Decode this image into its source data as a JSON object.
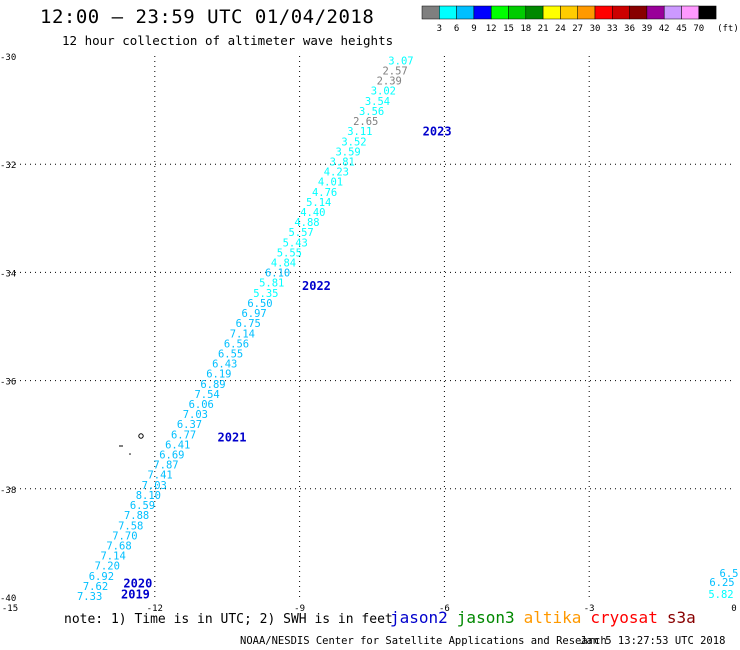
{
  "title": "12:00 – 23:59 UTC 01/04/2018",
  "subtitle": "12 hour collection of altimeter wave heights",
  "scale": {
    "labels": [
      "3",
      "6",
      "9",
      "12",
      "15",
      "18",
      "21",
      "24",
      "27",
      "30",
      "33",
      "36",
      "39",
      "42",
      "45",
      "70"
    ],
    "unit": "(ft)",
    "colors": [
      "#7f7f7f",
      "#00ffff",
      "#00bfff",
      "#0000ff",
      "#00ff00",
      "#00cc00",
      "#008800",
      "#ffff00",
      "#ffcc00",
      "#ff9900",
      "#ff0000",
      "#cc0000",
      "#880000",
      "#990099",
      "#cc99ff",
      "#ff99ff",
      "#000000"
    ]
  },
  "note": "note: 1) Time is in UTC; 2) SWH is in feet",
  "satellites": [
    {
      "name": "jason2",
      "color": "#0000cc"
    },
    {
      "name": "jason3",
      "color": "#008800"
    },
    {
      "name": "altika",
      "color": "#ff9900"
    },
    {
      "name": "cryosat",
      "color": "#ff0000"
    },
    {
      "name": "s3a",
      "color": "#880000"
    }
  ],
  "credit": "NOAA/NESDIS Center for Satellite Applications and Research",
  "generated": "Jan  5 13:27:53 UTC 2018",
  "chart_data": {
    "type": "scatter",
    "xlim": [
      -15,
      0
    ],
    "ylim": [
      -40,
      -30
    ],
    "xticks": [
      "-15",
      "-12",
      "-9",
      "-6",
      "-3",
      "0"
    ],
    "yticks": [
      "-30",
      "-32",
      "-34",
      "-36",
      "-38",
      "-40"
    ],
    "xtick_values": [
      -15,
      -12,
      -9,
      -6,
      -3,
      0
    ],
    "ytick_values": [
      -30,
      -32,
      -34,
      -36,
      -38,
      -40
    ],
    "grid": true,
    "track": {
      "lon_start": -13.35,
      "lat_start": -40.0,
      "lon_end": -6.9,
      "lat_end": -30.1,
      "values": [
        "7.33",
        "7.62",
        "6.92",
        "7.20",
        "7.14",
        "7.68",
        "7.70",
        "7.58",
        "7.88",
        "6.59",
        "8.10",
        "7.03",
        "7.41",
        "7.87",
        "6.69",
        "6.41",
        "6.77",
        "6.37",
        "7.03",
        "6.06",
        "7.54",
        "6.89",
        "6.19",
        "6.43",
        "6.55",
        "6.56",
        "7.14",
        "6.75",
        "6.97",
        "6.50",
        "5.35",
        "5.81",
        "6.10",
        "4.84",
        "5.55",
        "5.43",
        "5.57",
        "4.88",
        "4.40",
        "5.14",
        "4.76",
        "4.01",
        "4.23",
        "3.81",
        "3.59",
        "3.52",
        "3.11",
        "2.65",
        "3.56",
        "3.54",
        "3.02",
        "2.39",
        "2.57",
        "3.07"
      ]
    },
    "right_values": [
      "5.82",
      "6.25",
      "6.5"
    ],
    "time_labels": [
      {
        "text": "2019",
        "lon": -12.7,
        "lat": -39.95
      },
      {
        "text": "2020",
        "lon": -12.65,
        "lat": -39.75
      },
      {
        "text": "2021",
        "lon": -10.7,
        "lat": -37.05
      },
      {
        "text": "2022",
        "lon": -8.95,
        "lat": -34.25
      },
      {
        "text": "2023",
        "lon": -6.45,
        "lat": -31.4
      }
    ]
  }
}
